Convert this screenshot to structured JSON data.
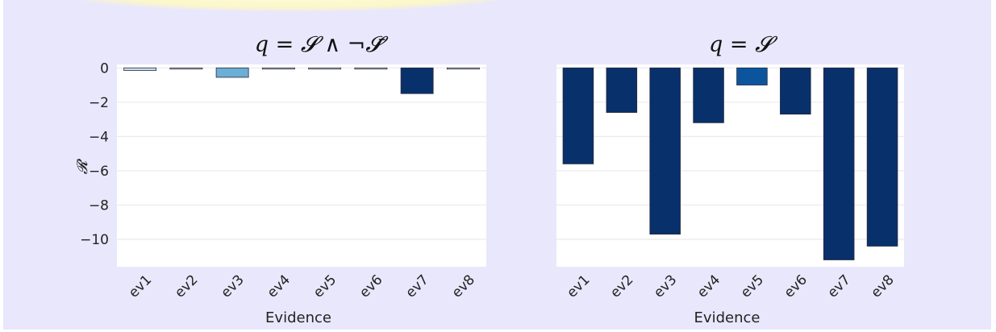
{
  "chart_data": [
    {
      "type": "bar",
      "title": "q = 𝓢 ∧ ¬𝓢̄",
      "xlabel": "Evidence",
      "ylabel": "𝓡",
      "categories": [
        "ev1",
        "ev2",
        "ev3",
        "ev4",
        "ev5",
        "ev6",
        "ev7",
        "ev8"
      ],
      "values": [
        -0.15,
        -0.05,
        -0.55,
        -0.05,
        -0.02,
        -0.05,
        -1.5,
        -0.05
      ],
      "bar_colors": [
        "#c6dbef",
        "#deebf7",
        "#6baed6",
        "#dbe9f6",
        "#e4eef8",
        "#dbe9f6",
        "#08306b",
        "#dbe9f6"
      ],
      "yticks": [
        "0",
        "−2",
        "−4",
        "−6",
        "−8",
        "−10"
      ],
      "ylim": [
        -11.6,
        0.2
      ],
      "grid": true
    },
    {
      "type": "bar",
      "title": "q = 𝓢",
      "xlabel": "Evidence",
      "ylabel": "",
      "categories": [
        "ev1",
        "ev2",
        "ev3",
        "ev4",
        "ev5",
        "ev6",
        "ev7",
        "ev8"
      ],
      "values": [
        -5.6,
        -2.6,
        -9.7,
        -3.2,
        -1.0,
        -2.7,
        -11.2,
        -10.4
      ],
      "bar_colors": [
        "#08306b",
        "#08306b",
        "#08306b",
        "#08306b",
        "#0b559f",
        "#08306b",
        "#08306b",
        "#08306b"
      ],
      "yticks": [],
      "ylim": [
        -11.6,
        0.2
      ],
      "grid": true
    }
  ]
}
